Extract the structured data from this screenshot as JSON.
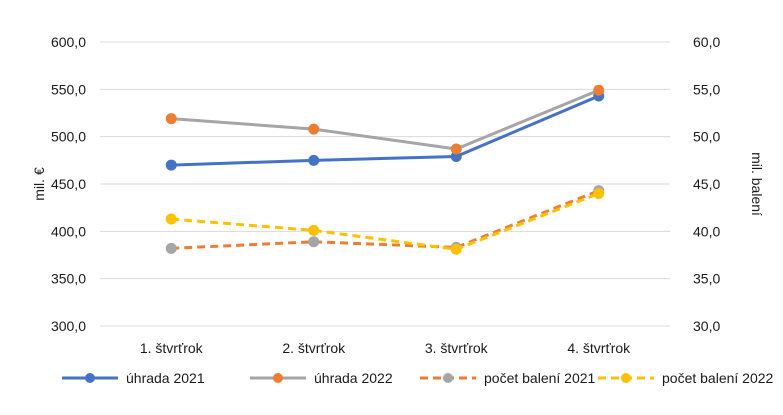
{
  "chart_data": {
    "type": "line",
    "categories": [
      "1. štvrťrok",
      "2. štvrťrok",
      "3. štvrťrok",
      "4. štvrťrok"
    ],
    "ylabel_left": "mil. €",
    "ylabel_right": "mil. balení",
    "ylim_left": [
      300,
      600
    ],
    "ylim_right": [
      30,
      60
    ],
    "yticks_left": [
      "600,0",
      "550,0",
      "500,0",
      "450,0",
      "400,0",
      "350,0",
      "300,0"
    ],
    "yticks_right": [
      "60,0",
      "55,0",
      "50,0",
      "45,0",
      "40,0",
      "35,0",
      "30,0"
    ],
    "grid": true,
    "legend_position": "bottom",
    "series": [
      {
        "name": "úhrada 2021",
        "axis": "left",
        "style": "solid",
        "line_color": "#4472C4",
        "marker_color": "#4472C4",
        "values": [
          470,
          475,
          479,
          543
        ]
      },
      {
        "name": "úhrada 2022",
        "axis": "left",
        "style": "solid",
        "line_color": "#A5A5A5",
        "marker_color": "#ED7D31",
        "values": [
          519,
          508,
          487,
          549
        ]
      },
      {
        "name": "počet balení 2021",
        "axis": "right",
        "style": "dashed",
        "line_color": "#ED7D31",
        "marker_color": "#A5A5A5",
        "values": [
          38.2,
          38.9,
          38.3,
          44.3
        ]
      },
      {
        "name": "počet balení 2022",
        "axis": "right",
        "style": "dashed",
        "line_color": "#FFC000",
        "marker_color": "#FFC000",
        "values": [
          41.3,
          40.1,
          38.1,
          44.0
        ]
      }
    ]
  }
}
